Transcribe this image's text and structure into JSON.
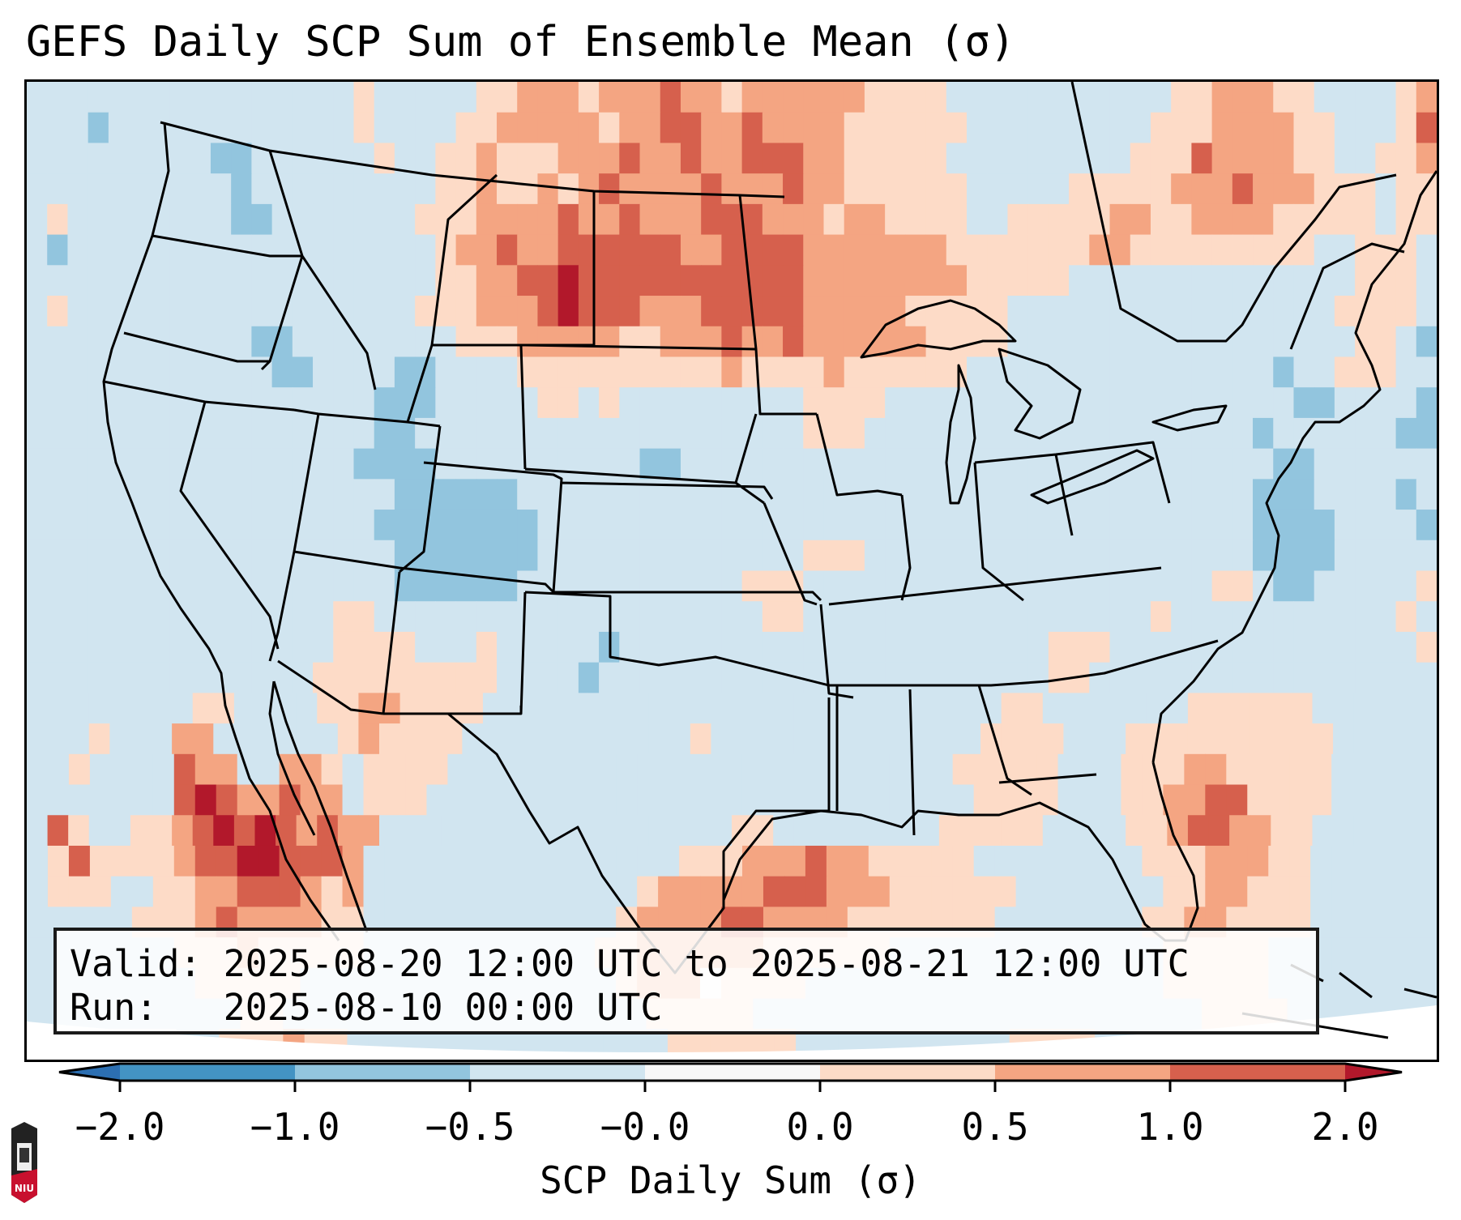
{
  "title": "GEFS Daily SCP Sum of Ensemble Mean (σ)",
  "info": {
    "valid_line": "Valid: 2025-08-20 12:00 UTC to 2025-08-21 12:00 UTC",
    "run_line": "Run:   2025-08-10 00:00 UTC"
  },
  "colorbar": {
    "title": "SCP Daily Sum (σ)",
    "ticks": [
      "−2.0",
      "−1.0",
      "−0.5",
      "−0.0",
      "0.0",
      "0.5",
      "1.0",
      "2.0"
    ],
    "levels": [
      -2.0,
      -1.0,
      -0.5,
      -0.0,
      0.0,
      0.5,
      1.0,
      2.0
    ],
    "colors": {
      "under": "#2c6fb2",
      "bins": [
        "#4393c3",
        "#92c5de",
        "#d1e5f0",
        "#f7f7f7",
        "#fddbc7",
        "#f4a582",
        "#d6604d"
      ],
      "over": "#b2182b"
    },
    "extend": "both"
  },
  "logo": {
    "name": "NIU",
    "text": "NIU",
    "colors": {
      "top": "#222222",
      "bottom": "#c8102e"
    }
  },
  "map": {
    "projection": "Lambert Conformal (CONUS)",
    "region": "Contiguous United States, southern Canada, northern Mexico, Gulf of Mexico",
    "legend_note": "Grid cell codes: b=-1.0..-0.5, l=-0.5..-0.0, w=-0.0..0.0, p=0.0..0.5, o=0.5..1.0, r=1.0..2.0, d=>2.0, n=outside domain",
    "grid_rows": [
      "llllllllllllllllplllllppooopoooroopoooooopppplllllllllllppoooppllllpo",
      "lllbllllllllllllpllllppooooopoorrooroooopppppplllllllllpppoooopplllpr",
      "lllllllllbbllllllpllppopppooorooroorrrooppppplllllllllppprooooppllppo",
      "llllllllllblllllllllppoppoporooooroooroopppppplllllpppppoooroooppplpp",
      "lpllllllllbblllllllpppooooroorooorrrooopooppppllpppppooppooooppppplpp",
      "lbllllllllllllllllllpooroorrrrrroorrrrooooooopppppppoopppppppppllpppl",
      "llllllllllllllllllllppoorrdrrrrrrrrrrroooooooopppppllllllllllllllpppl",
      "lplllllllllllllllllpppooordrrrooorrrrrooooopppppllllllllllllllllppppl",
      "lllllllllllbbllllllllpppoooooppooorooroooooopppplllllllllllllllllpplb",
      "llllllllllllbbllllbbllllppppppppppoppppopppppplllllllllllllllbllpppll",
      "lllllllllllllllllbbblllllpplplllllllllppppllllllllllllllllllllbbllllb",
      "lllllllllllllllllbblllllllllllllllllllppplllllllllllllllllllbllllllbb",
      "llllllllllllllllbbbbllllllllllbblllllllllllllllllllllllllllllbbllllll",
      "llllllllllllllllllbbbbbbllllllllllllllllllllllllllllllllllllbbbllllbl",
      "lllllllllllllllllbbbbbbbblllllllllllllllllllllllllllllllllllbbbbllllb",
      "llllllllllllllllllbbbbbbblllllllllllllppplllllllllllllllllllbbbblllll",
      "llllllllllllllllllbbbbbblllllllllllpppllllllllllllllllllllpplbblllllp",
      "lllllllllllllllpplllllllllllllllllllpplllllllllllllllllplllllllllllpl",
      "lllllllllllllllpppplllplllllblllllllllllllllllllllppplllllllllllllllp",
      "llllllllllllllpppppppppllllbllllllllllllllllllllllpplllllllllllllllll",
      "llllllllppllllppoopppplllllllllllllllllllllllllpplllllllppppppllllll",
      "lllpllloollllllpopppplllllllllllplllllllllllllpppplllpppppppppplllll",
      "llpllllroollooplppppllllllllllllllllllllllllppppplllpppooppppplllll",
      "lllllllrdrooroolpppllllllllllllllllllllllllllpppplllppoorrpppplllll",
      "lrpllppordrdroroolllllllllllllllllppllllllllpppppllllpporrooppllllll",
      "lprpppporrddrrrolllllllllllllllpppoooroopppppllllllllpppoooppllllll",
      "lpppllppoorrropolllllllllllllpooooorrrooopppppplllllllppoopppllllll",
      "lllllppporooooppllllllllllllpoooorrooooppppppplllllllppooppppllllll",
      "lllllllpppoppppplllllllllllppoooooopppppplllllllllllllpppppllllllll",
      "llllllllppppplllllllllllllllpooowpppplllllllllllllllllpppppllllllll",
      "llllllllllpplllllllllllllllllppppplllllllllllllllllllllpppplllllll",
      "nnnnnnnllpppopplllllllllllllllppppppllllllllllppppllllllllllllnnnn"
    ]
  }
}
